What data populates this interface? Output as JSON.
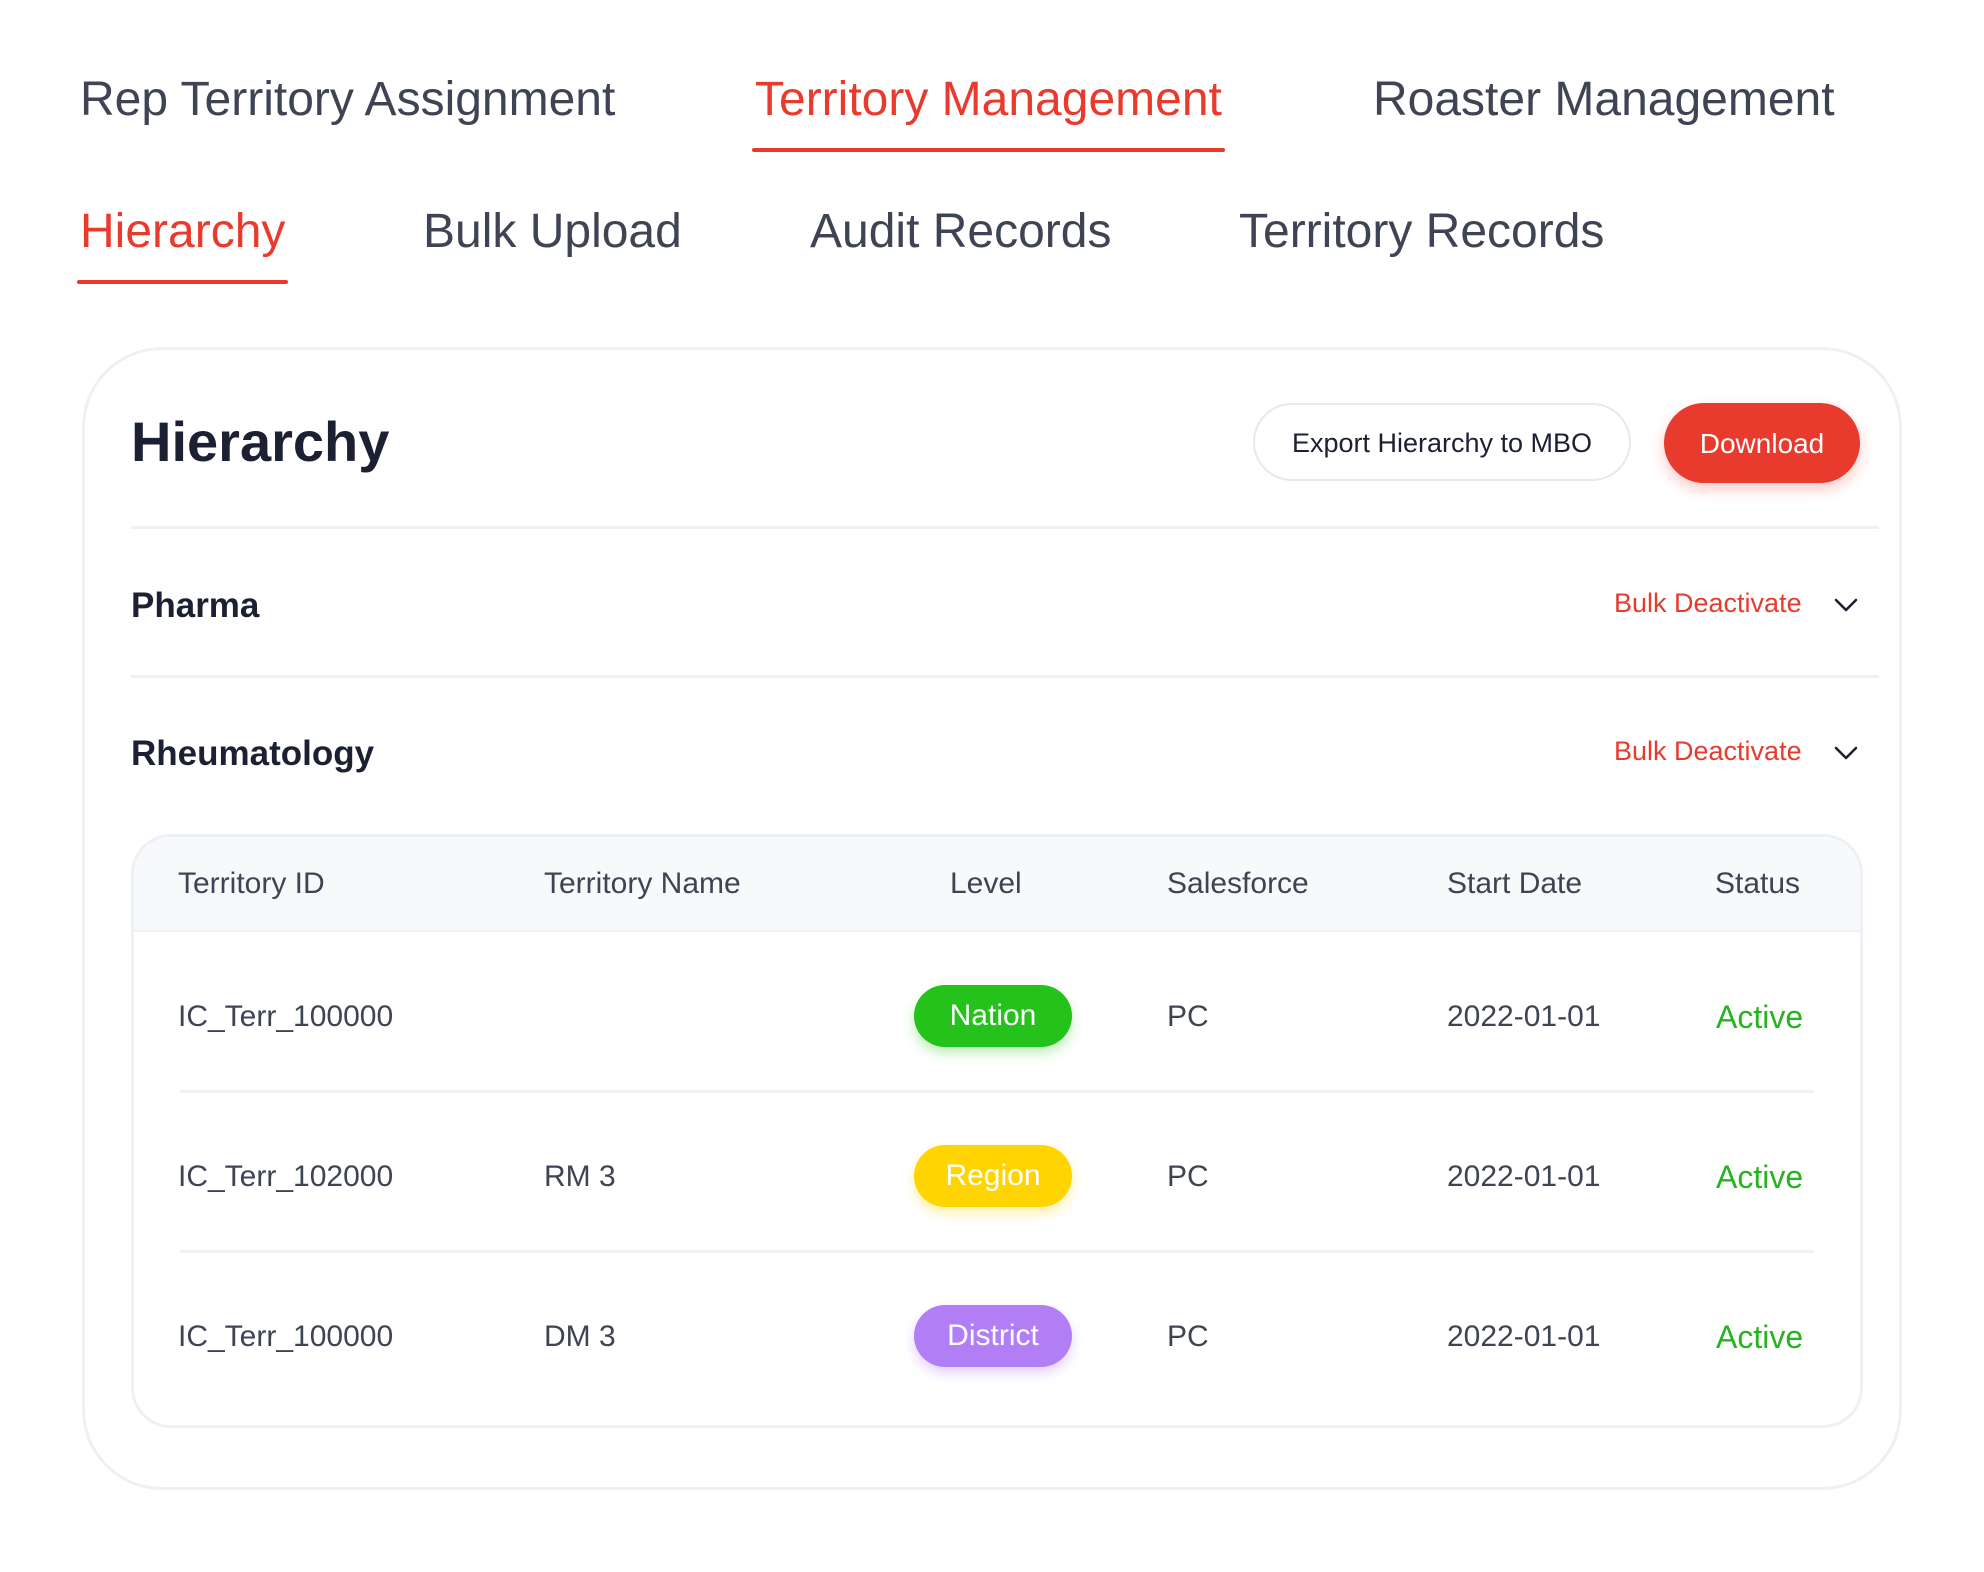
{
  "primary_tabs": [
    {
      "label": "Rep Territory Assignment",
      "active": false
    },
    {
      "label": "Territory Management",
      "active": true
    },
    {
      "label": "Roaster Management",
      "active": false
    }
  ],
  "secondary_tabs": [
    {
      "label": "Hierarchy",
      "active": true
    },
    {
      "label": "Bulk Upload",
      "active": false
    },
    {
      "label": "Audit Records",
      "active": false
    },
    {
      "label": "Territory Records",
      "active": false
    }
  ],
  "card": {
    "title": "Hierarchy",
    "export_label": "Export Hierarchy to MBO",
    "download_label": "Download"
  },
  "groups": [
    {
      "title": "Pharma",
      "action_label": "Bulk Deactivate",
      "expanded": false,
      "icon": "chevron-down-icon"
    },
    {
      "title": "Rheumatology",
      "action_label": "Bulk Deactivate",
      "expanded": true,
      "icon": "chevron-down-icon"
    }
  ],
  "table": {
    "columns": [
      "Territory ID",
      "Territory Name",
      "Level",
      "Salesforce",
      "Start Date",
      "Status"
    ],
    "rows": [
      {
        "territory_id": "IC_Terr_100000",
        "territory_name": "",
        "level": "Nation",
        "salesforce": "PC",
        "start_date": "2022-01-01",
        "status": "Active"
      },
      {
        "territory_id": "IC_Terr_102000",
        "territory_name": "RM 3",
        "level": "Region",
        "salesforce": "PC",
        "start_date": "2022-01-01",
        "status": "Active"
      },
      {
        "territory_id": "IC_Terr_100000",
        "territory_name": "DM 3",
        "level": "District",
        "salesforce": "PC",
        "start_date": "2022-01-01",
        "status": "Active"
      }
    ]
  },
  "colors": {
    "accent": "#e83a2d",
    "status_active": "#25b31e",
    "level_nation": "#24c21a",
    "level_region": "#ffd400",
    "level_district": "#b17ef5"
  }
}
